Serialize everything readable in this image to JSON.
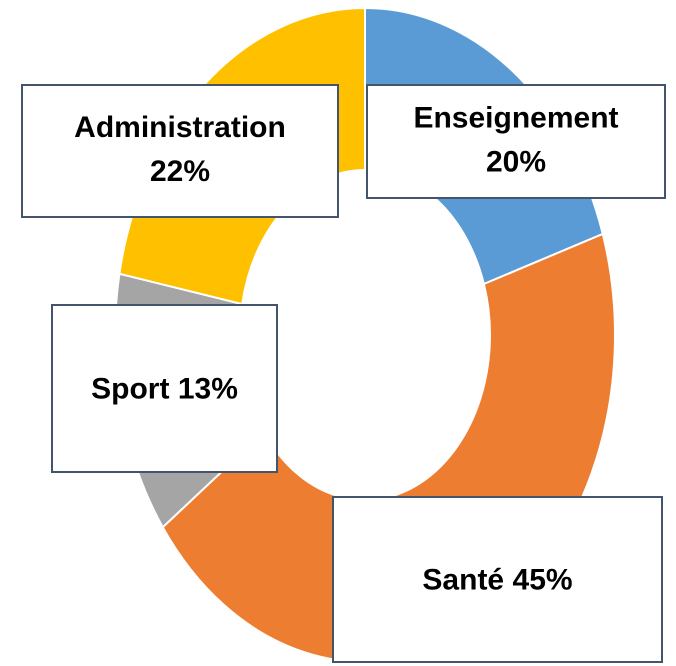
{
  "chart_data": {
    "type": "donut",
    "categories": [
      "Enseignement",
      "Santé",
      "Sport",
      "Administration"
    ],
    "values": [
      20,
      45,
      13,
      22
    ],
    "value_labels": [
      "20%",
      "45%",
      "13%",
      "22%"
    ],
    "colors": [
      "#5b9bd5",
      "#ed7d31",
      "#a5a5a5",
      "#ffc000"
    ]
  }
}
